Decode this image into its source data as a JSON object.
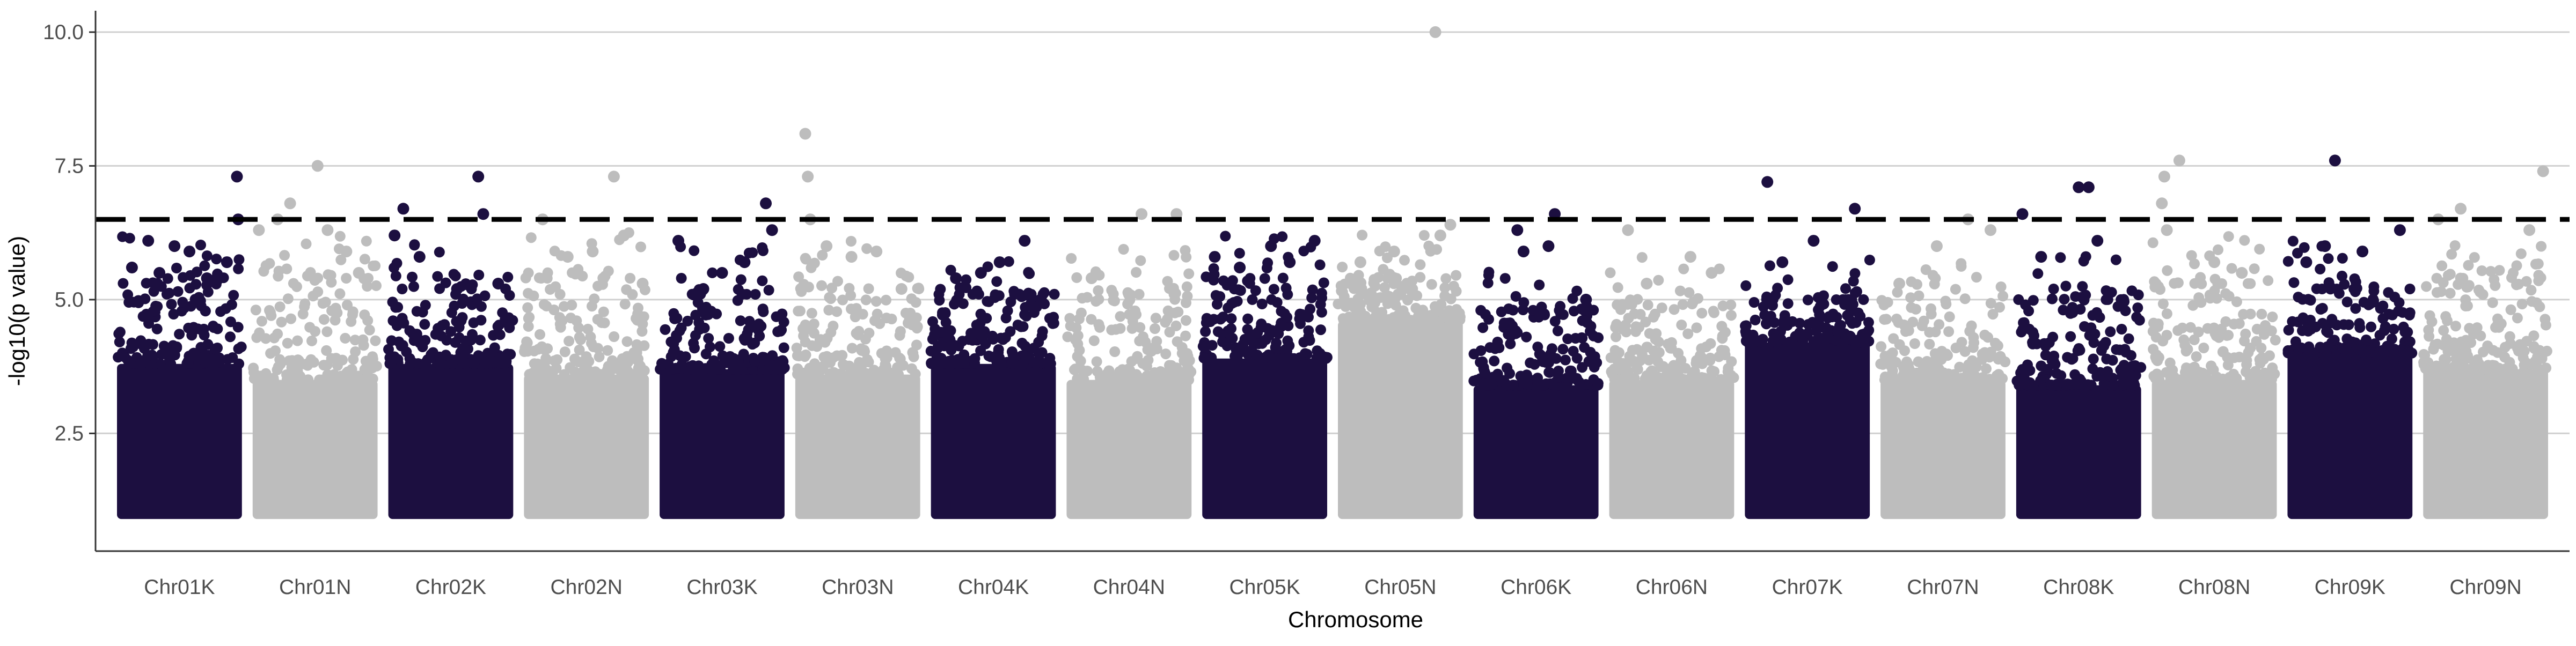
{
  "chart_data": {
    "type": "scatter",
    "subtype": "manhattan",
    "title": "",
    "xlabel": "Chromosome",
    "ylabel": "-log10(p value)",
    "ylim": [
      0.3,
      10.4
    ],
    "yticks": [
      2.5,
      5.0,
      7.5,
      10.0
    ],
    "ytick_labels": [
      "2.5",
      "5.0",
      "7.5",
      "10.0"
    ],
    "grid": "horizontal major lines",
    "legend": "none",
    "threshold": {
      "value": 6.5,
      "style": "dashed",
      "color": "#000000"
    },
    "colors": {
      "odd": "#1c0f40",
      "even": "#bdbdbd",
      "grid": "#d0d0d0",
      "axis": "#333333"
    },
    "min_plotted_value": 1.0,
    "categories": [
      "Chr01K",
      "Chr01N",
      "Chr02K",
      "Chr02N",
      "Chr03K",
      "Chr03N",
      "Chr04K",
      "Chr04N",
      "Chr05K",
      "Chr05N",
      "Chr06K",
      "Chr06N",
      "Chr07K",
      "Chr07N",
      "Chr08K",
      "Chr08N",
      "Chr09K",
      "Chr09N"
    ],
    "series": [
      {
        "category": "Chr01K",
        "color": "odd",
        "dense_top": 3.8,
        "scatter_top": 5.3,
        "points": [
          [
            0.12,
            5.6
          ],
          [
            0.25,
            6.1
          ],
          [
            0.34,
            5.5
          ],
          [
            0.46,
            6.0
          ],
          [
            0.58,
            5.9
          ],
          [
            0.72,
            5.4
          ],
          [
            0.88,
            5.7
          ],
          [
            0.96,
            7.3
          ],
          [
            0.97,
            6.5
          ]
        ]
      },
      {
        "category": "Chr01N",
        "color": "even",
        "dense_top": 3.5,
        "scatter_top": 5.4,
        "points": [
          [
            0.05,
            6.3
          ],
          [
            0.2,
            6.5
          ],
          [
            0.3,
            6.8
          ],
          [
            0.52,
            7.5
          ],
          [
            0.6,
            6.3
          ],
          [
            0.75,
            5.9
          ],
          [
            0.85,
            5.5
          ]
        ]
      },
      {
        "category": "Chr02K",
        "color": "odd",
        "dense_top": 3.8,
        "scatter_top": 5.2,
        "points": [
          [
            0.05,
            6.2
          ],
          [
            0.12,
            6.7
          ],
          [
            0.25,
            5.8
          ],
          [
            0.55,
            5.2
          ],
          [
            0.72,
            7.3
          ],
          [
            0.76,
            6.6
          ],
          [
            0.88,
            5.3
          ]
        ]
      },
      {
        "category": "Chr02N",
        "color": "even",
        "dense_top": 3.6,
        "scatter_top": 5.4,
        "points": [
          [
            0.15,
            6.5
          ],
          [
            0.35,
            5.8
          ],
          [
            0.55,
            5.9
          ],
          [
            0.72,
            7.3
          ],
          [
            0.8,
            6.2
          ],
          [
            0.95,
            5.3
          ]
        ]
      },
      {
        "category": "Chr03K",
        "color": "odd",
        "dense_top": 3.7,
        "scatter_top": 5.1,
        "points": [
          [
            0.15,
            6.1
          ],
          [
            0.35,
            5.2
          ],
          [
            0.5,
            5.5
          ],
          [
            0.68,
            5.7
          ],
          [
            0.85,
            6.8
          ],
          [
            0.9,
            6.3
          ]
        ]
      },
      {
        "category": "Chr03N",
        "color": "even",
        "dense_top": 3.6,
        "scatter_top": 5.2,
        "points": [
          [
            0.08,
            8.1
          ],
          [
            0.1,
            7.3
          ],
          [
            0.12,
            6.5
          ],
          [
            0.25,
            6.0
          ],
          [
            0.45,
            5.8
          ],
          [
            0.65,
            5.9
          ],
          [
            0.85,
            5.2
          ]
        ]
      },
      {
        "category": "Chr04K",
        "color": "odd",
        "dense_top": 3.8,
        "scatter_top": 5.1,
        "points": [
          [
            0.2,
            5.4
          ],
          [
            0.4,
            5.5
          ],
          [
            0.55,
            5.7
          ],
          [
            0.75,
            6.1
          ],
          [
            0.88,
            5.0
          ]
        ]
      },
      {
        "category": "Chr04N",
        "color": "even",
        "dense_top": 3.5,
        "scatter_top": 5.1,
        "points": [
          [
            0.2,
            5.4
          ],
          [
            0.5,
            5.1
          ],
          [
            0.6,
            6.6
          ],
          [
            0.88,
            6.6
          ]
        ]
      },
      {
        "category": "Chr05K",
        "color": "odd",
        "dense_top": 3.9,
        "scatter_top": 5.3,
        "points": [
          [
            0.1,
            5.8
          ],
          [
            0.3,
            5.6
          ],
          [
            0.55,
            6.0
          ],
          [
            0.7,
            5.7
          ],
          [
            0.9,
            6.1
          ]
        ]
      },
      {
        "category": "Chr05N",
        "color": "even",
        "dense_top": 4.6,
        "scatter_top": 5.4,
        "points": [
          [
            0.18,
            5.7
          ],
          [
            0.45,
            5.9
          ],
          [
            0.78,
            10.0
          ],
          [
            0.82,
            6.2
          ],
          [
            0.9,
            6.4
          ]
        ]
      },
      {
        "category": "Chr06K",
        "color": "odd",
        "dense_top": 3.4,
        "scatter_top": 4.8,
        "points": [
          [
            0.35,
            6.3
          ],
          [
            0.4,
            5.9
          ],
          [
            0.6,
            6.0
          ],
          [
            0.65,
            6.6
          ],
          [
            0.9,
            5.0
          ]
        ]
      },
      {
        "category": "Chr06N",
        "color": "even",
        "dense_top": 3.5,
        "scatter_top": 4.9,
        "points": [
          [
            0.15,
            6.3
          ],
          [
            0.3,
            5.3
          ],
          [
            0.65,
            5.8
          ],
          [
            0.82,
            5.5
          ]
        ]
      },
      {
        "category": "Chr07K",
        "color": "odd",
        "dense_top": 4.2,
        "scatter_top": 5.0,
        "points": [
          [
            0.18,
            7.2
          ],
          [
            0.3,
            5.7
          ],
          [
            0.55,
            6.1
          ],
          [
            0.88,
            6.7
          ]
        ]
      },
      {
        "category": "Chr07N",
        "color": "even",
        "dense_top": 3.5,
        "scatter_top": 4.9,
        "points": [
          [
            0.15,
            5.3
          ],
          [
            0.45,
            6.0
          ],
          [
            0.7,
            6.5
          ],
          [
            0.88,
            6.3
          ]
        ]
      },
      {
        "category": "Chr08K",
        "color": "odd",
        "dense_top": 3.4,
        "scatter_top": 5.0,
        "points": [
          [
            0.05,
            6.6
          ],
          [
            0.2,
            5.8
          ],
          [
            0.5,
            7.1
          ],
          [
            0.58,
            7.1
          ],
          [
            0.65,
            6.1
          ]
        ]
      },
      {
        "category": "Chr08N",
        "color": "even",
        "dense_top": 3.5,
        "scatter_top": 5.3,
        "points": [
          [
            0.08,
            6.8
          ],
          [
            0.1,
            7.3
          ],
          [
            0.12,
            6.3
          ],
          [
            0.22,
            7.6
          ],
          [
            0.5,
            5.7
          ],
          [
            0.72,
            5.5
          ]
        ]
      },
      {
        "category": "Chr09K",
        "color": "odd",
        "dense_top": 4.0,
        "scatter_top": 5.2,
        "points": [
          [
            0.15,
            5.7
          ],
          [
            0.3,
            6.0
          ],
          [
            0.38,
            7.6
          ],
          [
            0.6,
            5.9
          ],
          [
            0.9,
            6.3
          ]
        ]
      },
      {
        "category": "Chr09N",
        "color": "even",
        "dense_top": 3.7,
        "scatter_top": 5.4,
        "points": [
          [
            0.12,
            6.5
          ],
          [
            0.3,
            6.7
          ],
          [
            0.85,
            6.3
          ],
          [
            0.96,
            7.4
          ]
        ]
      }
    ]
  }
}
